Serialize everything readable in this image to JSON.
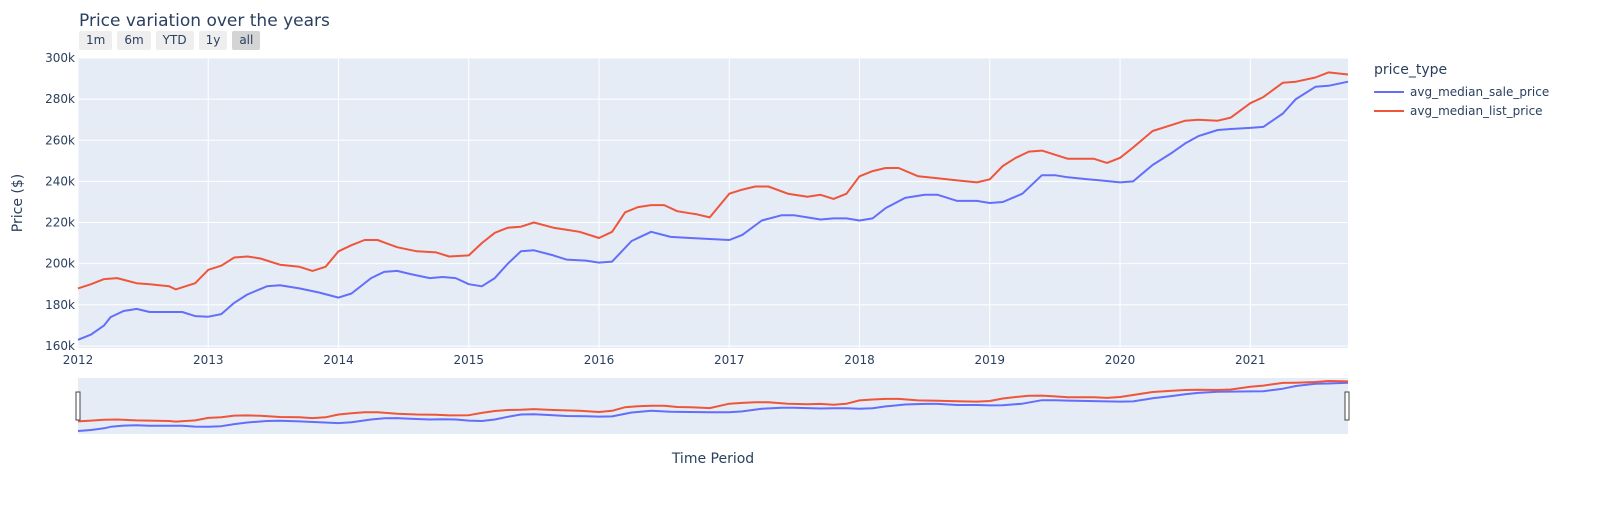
{
  "chart_data": {
    "type": "line",
    "title": "Price variation over the years",
    "xlabel": "Time Period",
    "ylabel": "Price ($)",
    "xlim": [
      2012.0,
      2021.75
    ],
    "ylim": [
      159000,
      300000
    ],
    "y_ticks": [
      160000,
      180000,
      200000,
      220000,
      240000,
      260000,
      280000,
      300000
    ],
    "y_tick_labels": [
      "160k",
      "180k",
      "200k",
      "220k",
      "240k",
      "260k",
      "280k",
      "300k"
    ],
    "x_ticks": [
      2012,
      2013,
      2014,
      2015,
      2016,
      2017,
      2018,
      2019,
      2020,
      2021
    ],
    "x_tick_labels": [
      "2012",
      "2013",
      "2014",
      "2015",
      "2016",
      "2017",
      "2018",
      "2019",
      "2020",
      "2021"
    ],
    "grid": true,
    "legend_title": "price_type",
    "legend_position": "top-right",
    "range_buttons": [
      {
        "label": "1m",
        "active": false
      },
      {
        "label": "6m",
        "active": false
      },
      {
        "label": "YTD",
        "active": false
      },
      {
        "label": "1y",
        "active": false
      },
      {
        "label": "all",
        "active": true
      }
    ],
    "series": [
      {
        "name": "avg_median_sale_price",
        "color": "#636efa",
        "x": [
          2012.0,
          2012.1,
          2012.2,
          2012.25,
          2012.35,
          2012.45,
          2012.55,
          2012.65,
          2012.8,
          2012.9,
          2013.0,
          2013.1,
          2013.2,
          2013.3,
          2013.45,
          2013.55,
          2013.7,
          2013.85,
          2014.0,
          2014.1,
          2014.25,
          2014.35,
          2014.45,
          2014.55,
          2014.7,
          2014.8,
          2014.9,
          2015.0,
          2015.1,
          2015.2,
          2015.3,
          2015.4,
          2015.5,
          2015.65,
          2015.75,
          2015.9,
          2016.0,
          2016.1,
          2016.25,
          2016.4,
          2016.55,
          2016.7,
          2016.85,
          2017.0,
          2017.1,
          2017.25,
          2017.4,
          2017.5,
          2017.6,
          2017.7,
          2017.8,
          2017.9,
          2018.0,
          2018.1,
          2018.2,
          2018.35,
          2018.5,
          2018.6,
          2018.75,
          2018.9,
          2019.0,
          2019.1,
          2019.25,
          2019.4,
          2019.5,
          2019.6,
          2019.75,
          2019.85,
          2020.0,
          2020.1,
          2020.25,
          2020.4,
          2020.5,
          2020.6,
          2020.75,
          2020.85,
          2021.0,
          2021.1,
          2021.25,
          2021.35,
          2021.5,
          2021.6,
          2021.75
        ],
        "values": [
          163000,
          165500,
          170000,
          174000,
          177000,
          178000,
          176500,
          176500,
          176500,
          174500,
          174200,
          175500,
          181000,
          185000,
          189000,
          189500,
          188000,
          186000,
          183500,
          185500,
          193000,
          196000,
          196500,
          195000,
          193000,
          193500,
          193000,
          190000,
          189000,
          193000,
          200000,
          206000,
          206500,
          204000,
          202000,
          201500,
          200500,
          201000,
          211000,
          215500,
          213000,
          212500,
          212000,
          211500,
          214000,
          221000,
          223500,
          223500,
          222500,
          221500,
          222000,
          222000,
          221000,
          222000,
          227000,
          232000,
          233500,
          233500,
          230500,
          230500,
          229500,
          230000,
          234000,
          243000,
          243000,
          242000,
          241000,
          240500,
          239500,
          240000,
          248000,
          254000,
          258500,
          262000,
          265000,
          265500,
          266000,
          266500,
          273000,
          280000,
          286000,
          286500,
          288500
        ]
      },
      {
        "name": "avg_median_list_price",
        "color": "#ef553b",
        "x": [
          2012.0,
          2012.1,
          2012.2,
          2012.3,
          2012.45,
          2012.55,
          2012.7,
          2012.75,
          2012.9,
          2013.0,
          2013.1,
          2013.2,
          2013.3,
          2013.4,
          2013.55,
          2013.7,
          2013.8,
          2013.9,
          2014.0,
          2014.1,
          2014.2,
          2014.3,
          2014.45,
          2014.6,
          2014.75,
          2014.85,
          2015.0,
          2015.1,
          2015.2,
          2015.3,
          2015.4,
          2015.5,
          2015.65,
          2015.75,
          2015.85,
          2016.0,
          2016.1,
          2016.2,
          2016.3,
          2016.4,
          2016.5,
          2016.6,
          2016.7,
          2016.75,
          2016.85,
          2017.0,
          2017.1,
          2017.2,
          2017.3,
          2017.45,
          2017.6,
          2017.7,
          2017.8,
          2017.9,
          2018.0,
          2018.1,
          2018.2,
          2018.3,
          2018.45,
          2018.6,
          2018.75,
          2018.9,
          2019.0,
          2019.1,
          2019.2,
          2019.3,
          2019.4,
          2019.5,
          2019.6,
          2019.7,
          2019.8,
          2019.9,
          2020.0,
          2020.1,
          2020.25,
          2020.4,
          2020.5,
          2020.6,
          2020.75,
          2020.85,
          2021.0,
          2021.1,
          2021.25,
          2021.35,
          2021.5,
          2021.6,
          2021.75
        ],
        "values": [
          188000,
          190000,
          192500,
          193000,
          190500,
          190000,
          189000,
          187500,
          190500,
          197000,
          199000,
          203000,
          203500,
          202500,
          199500,
          198500,
          196500,
          198500,
          206000,
          209000,
          211500,
          211500,
          208000,
          206000,
          205500,
          203500,
          204000,
          210000,
          215000,
          217500,
          218000,
          220000,
          217500,
          216500,
          215500,
          212500,
          215500,
          225000,
          227500,
          228500,
          228500,
          225500,
          224500,
          224000,
          222500,
          234000,
          236000,
          237500,
          237500,
          234000,
          232500,
          233500,
          231500,
          234000,
          242500,
          245000,
          246500,
          246500,
          242500,
          241500,
          240500,
          239500,
          241000,
          247500,
          251500,
          254500,
          255000,
          253000,
          251000,
          251000,
          251000,
          249000,
          251500,
          256500,
          264500,
          267500,
          269500,
          270000,
          269500,
          271000,
          278000,
          281000,
          288000,
          288500,
          290500,
          293000,
          292000
        ]
      }
    ]
  }
}
